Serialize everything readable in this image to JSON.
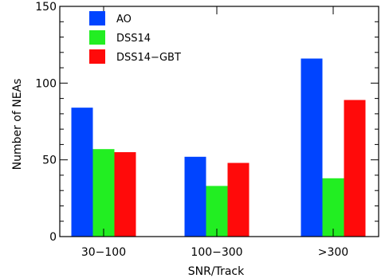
{
  "chart_data": {
    "type": "bar",
    "categories": [
      "30−100",
      "100−300",
      ">300"
    ],
    "series": [
      {
        "name": "AO",
        "color": "#0044ff",
        "values": [
          84,
          52,
          116
        ]
      },
      {
        "name": "DSS14",
        "color": "#22ee22",
        "values": [
          57,
          33,
          38
        ]
      },
      {
        "name": "DSS14−GBT",
        "color": "#ff0a0a",
        "values": [
          55,
          48,
          89
        ]
      }
    ],
    "title": "",
    "xlabel": "SNR/Track",
    "ylabel": "Number of NEAs",
    "ylim": [
      0,
      150
    ],
    "yticks": [
      0,
      50,
      100,
      150
    ],
    "grid": false,
    "legend_position": "top-left"
  }
}
